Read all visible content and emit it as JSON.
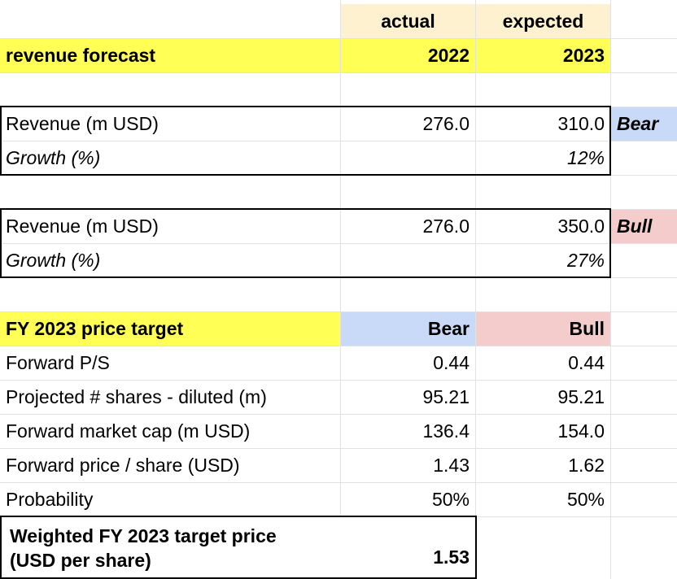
{
  "header": {
    "actual_label": "actual",
    "expected_label": "expected",
    "title": "revenue forecast",
    "year_actual": "2022",
    "year_expected": "2023"
  },
  "bear_case": {
    "revenue_label": "Revenue (m USD)",
    "revenue_2022": "276.0",
    "revenue_2023": "310.0",
    "tag": "Bear",
    "growth_label": "Growth (%)",
    "growth_2023": "12%"
  },
  "bull_case": {
    "revenue_label": "Revenue (m USD)",
    "revenue_2022": "276.0",
    "revenue_2023": "350.0",
    "tag": "Bull",
    "growth_label": "Growth (%)",
    "growth_2023": "27%"
  },
  "price_target": {
    "title": "FY 2023 price target",
    "bear_header": "Bear",
    "bull_header": "Bull",
    "rows": [
      {
        "label": "Forward P/S",
        "bear": "0.44",
        "bull": "0.44"
      },
      {
        "label": "Projected # shares - diluted (m)",
        "bear": "95.21",
        "bull": "95.21"
      },
      {
        "label": "Forward market cap (m USD)",
        "bear": "136.4",
        "bull": "154.0"
      },
      {
        "label": "Forward price / share (USD)",
        "bear": "1.43",
        "bull": "1.62"
      },
      {
        "label": "Probability",
        "bear": "50%",
        "bull": "50%"
      }
    ],
    "weighted_label_line1": "Weighted FY 2023 target price",
    "weighted_label_line2": "(USD per share)",
    "weighted_value": "1.53"
  },
  "colors": {
    "yellow": "#ffff55",
    "tan": "#fdf1cf",
    "blue": "#c9daf8",
    "pink": "#f4cccc",
    "gridline": "#e2e2e2"
  }
}
